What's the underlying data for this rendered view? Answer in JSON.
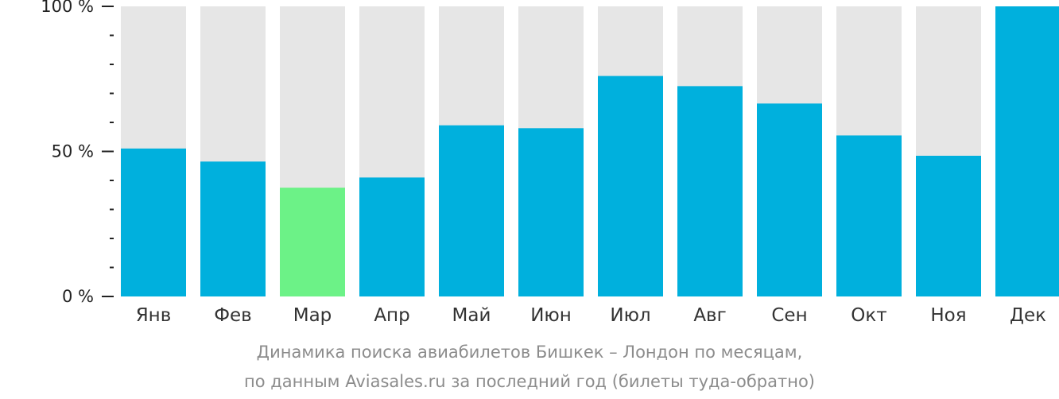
{
  "chart_data": {
    "type": "bar",
    "categories": [
      "Янв",
      "Фев",
      "Мар",
      "Апр",
      "Май",
      "Июн",
      "Июл",
      "Авг",
      "Сен",
      "Окт",
      "Ноя",
      "Дек"
    ],
    "values": [
      51,
      46.5,
      37.5,
      41,
      59,
      58,
      76,
      72.5,
      66.5,
      55.5,
      48.5,
      100
    ],
    "ylim": [
      0,
      100
    ],
    "yticks": [
      {
        "value": 100,
        "label": "100 %"
      },
      {
        "value": 50,
        "label": "50 %"
      },
      {
        "value": 0,
        "label": "0 %"
      }
    ],
    "minor_ticks": [
      10,
      20,
      30,
      40,
      60,
      70,
      80,
      90
    ],
    "highlight_index": 2,
    "colors": {
      "bar": "#00b0dd",
      "highlight": "#6cf287",
      "background_bar": "#e6e6e6",
      "axis": "#222222"
    }
  },
  "caption": {
    "line1": "Динамика поиска авиабилетов Бишкек – Лондон по месяцам,",
    "line2": "по данным Aviasales.ru за последний год (билеты туда-обратно)"
  }
}
